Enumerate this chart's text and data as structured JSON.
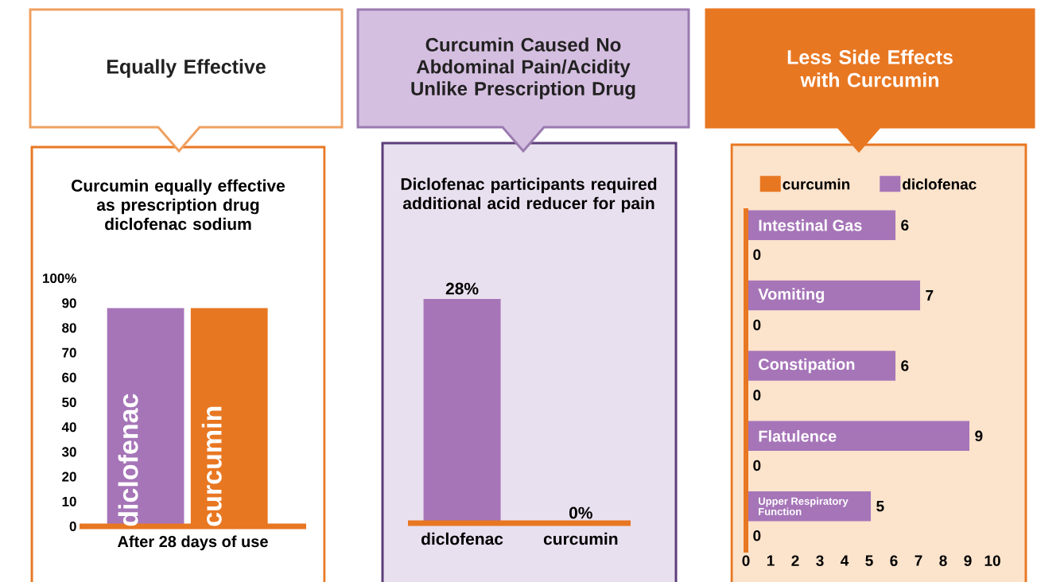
{
  "chart_data": [
    {
      "type": "bar",
      "title": "Equally Effective",
      "subtitle": "Curcumin equally effective as prescription drug diclofenac sodium",
      "categories": [
        "diclofenac",
        "curcumin"
      ],
      "values": [
        88,
        88
      ],
      "colors": [
        "#a675b8",
        "#e87722"
      ],
      "xlabel": "After 28 days of use",
      "ylim": [
        0,
        100
      ],
      "yticks": [
        0,
        10,
        20,
        30,
        40,
        50,
        60,
        70,
        80,
        90,
        {
          "value": 100,
          "label": "100%"
        }
      ]
    },
    {
      "type": "bar",
      "title": "Curcumin Caused No Abdominal Pain/Acidity Unlike Prescription Drug",
      "subtitle": "Diclofenac participants required additional acid reducer for pain",
      "categories": [
        "diclofenac",
        "curcumin"
      ],
      "values": [
        28,
        0
      ],
      "colors": [
        "#a675b8",
        "#e87722"
      ],
      "value_labels": [
        "28%",
        "0%"
      ]
    },
    {
      "type": "bar",
      "orientation": "horizontal",
      "title": "Less Side Effects with Curcumin",
      "categories": [
        "Intestinal Gas",
        "Vomiting",
        "Constipation",
        "Flatulence",
        "Upper Respiratory Function"
      ],
      "series": [
        {
          "name": "curcumin",
          "color": "#e87722",
          "values": [
            0,
            0,
            0,
            0,
            0
          ]
        },
        {
          "name": "diclofenac",
          "color": "#a675b8",
          "values": [
            6,
            7,
            6,
            9,
            5
          ]
        }
      ],
      "xlim": [
        0,
        10
      ],
      "xticks": [
        0,
        1,
        2,
        3,
        4,
        5,
        6,
        7,
        8,
        9,
        10
      ],
      "data_labels": true,
      "legend": "top"
    }
  ]
}
